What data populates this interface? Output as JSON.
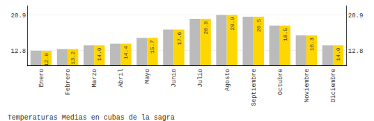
{
  "chart_data": {
    "type": "bar",
    "title": "Temperaturas Medias en cubas de la sagra",
    "categories": [
      "Enero",
      "Febrero",
      "Marzo",
      "Abril",
      "Mayo",
      "Junio",
      "Julio",
      "Agosto",
      "Septiembre",
      "Octubre",
      "Noviembre",
      "Diciembre"
    ],
    "series": [
      {
        "color": "#BBBBBB",
        "values": [
          12.8,
          13.2,
          14.0,
          14.4,
          15.7,
          17.6,
          20.0,
          20.9,
          20.5,
          18.5,
          16.3,
          14.0
        ]
      },
      {
        "color": "#FFD700",
        "values": [
          12.8,
          13.2,
          14.0,
          14.4,
          15.7,
          17.6,
          20.0,
          20.9,
          20.5,
          18.5,
          16.3,
          14.0
        ],
        "value_labels": [
          "12.8",
          "13.2",
          "14.0",
          "14.4",
          "15.7",
          "17.6",
          "20.0",
          "20.9",
          "20.5",
          "18.5",
          "16.3",
          "14.0"
        ]
      }
    ],
    "ylim": [
      9.5,
      23.0
    ],
    "yticks": [
      12.8,
      20.9
    ],
    "y2lim": [
      9.5,
      23.0
    ],
    "y2ticks": [
      12.8,
      20.9
    ],
    "grid": true,
    "data_labels": true
  }
}
